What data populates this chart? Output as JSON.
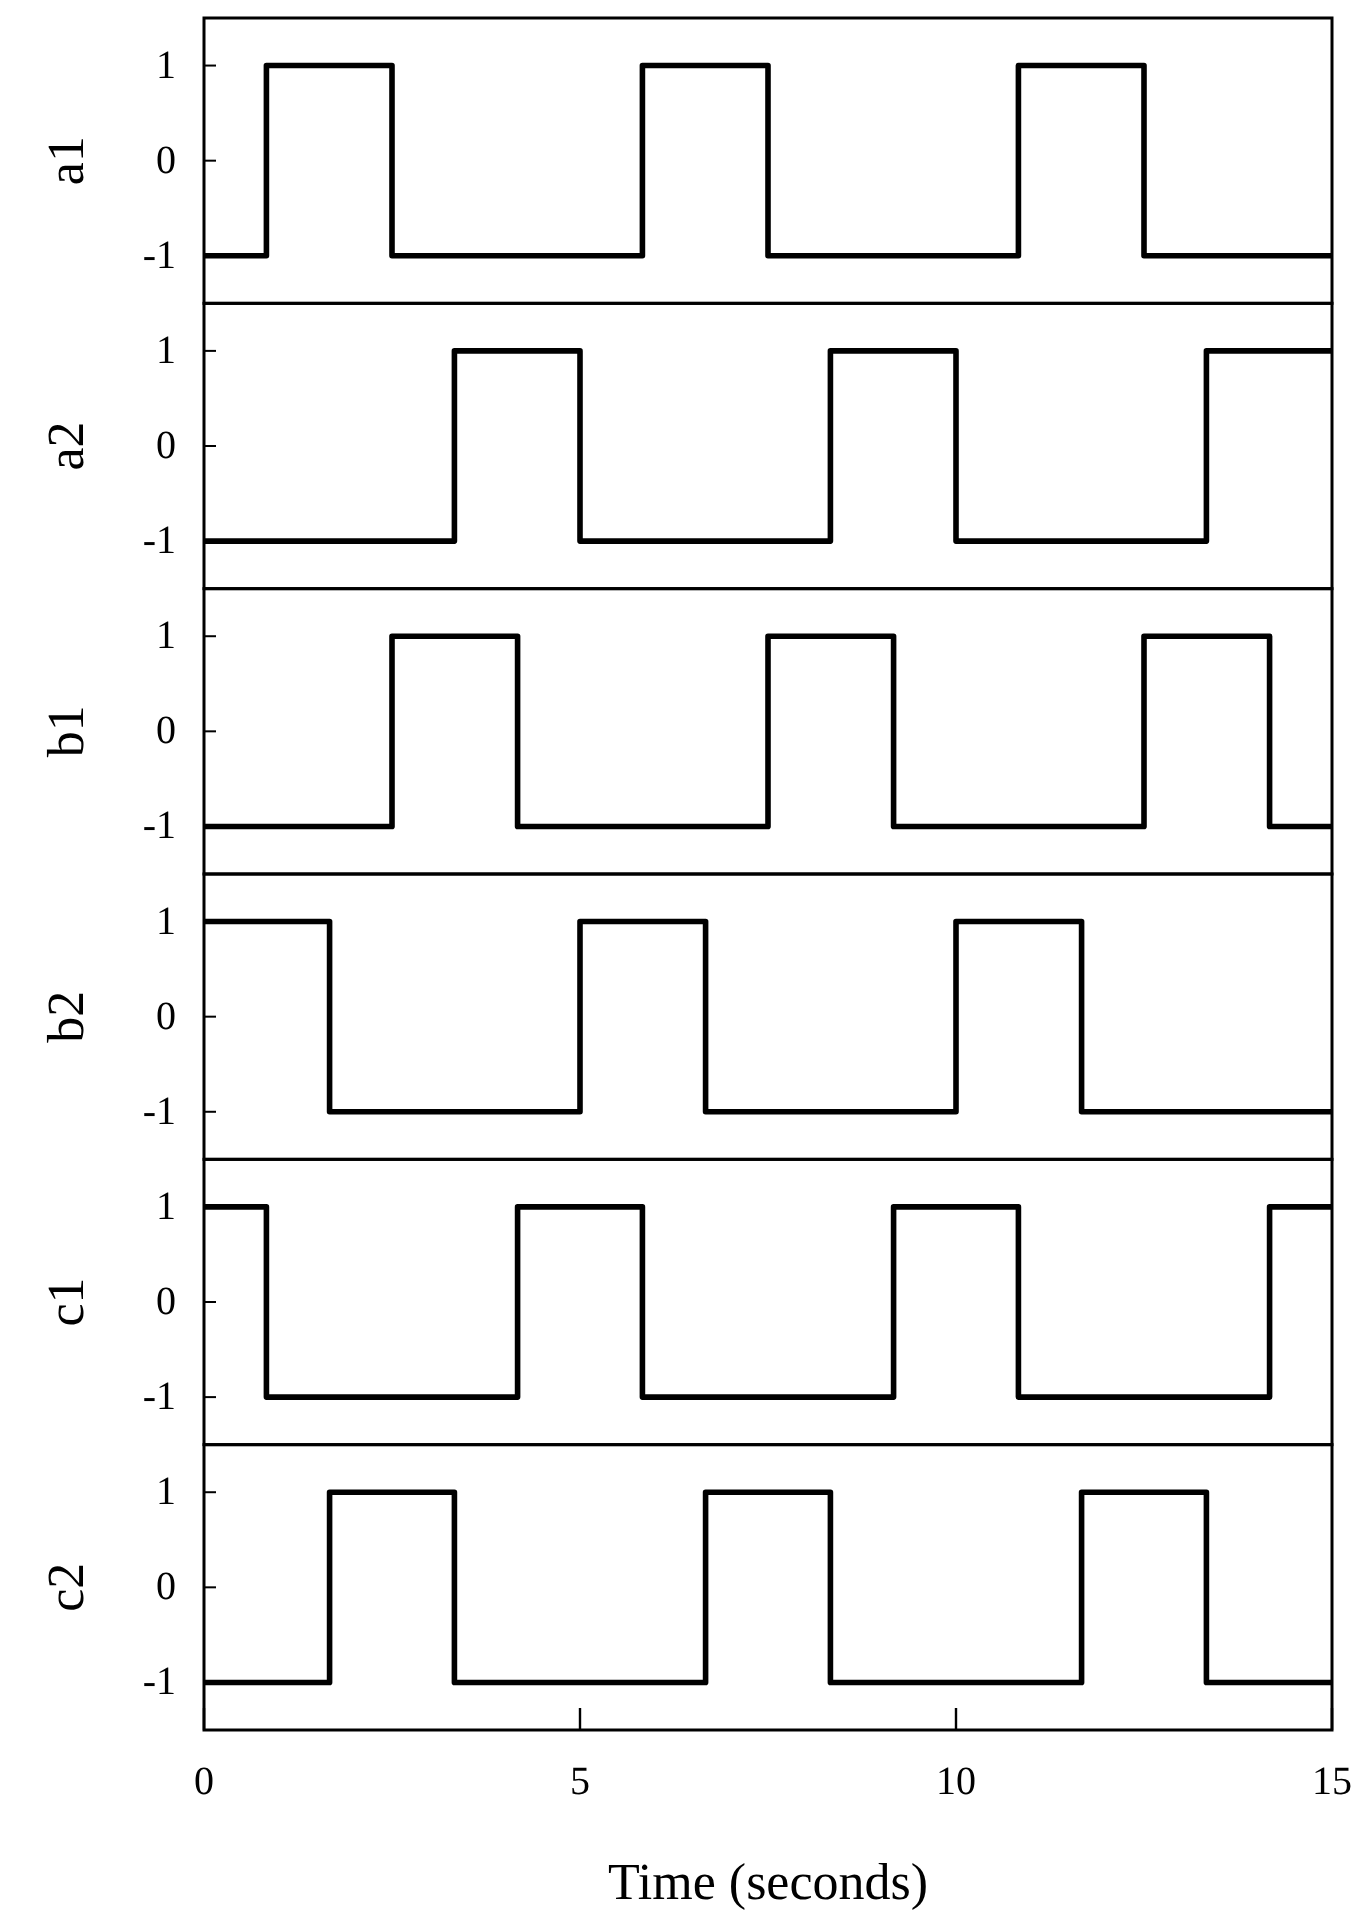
{
  "chart_data": [
    {
      "type": "step",
      "ylabel": "a1",
      "x": [
        0,
        0.83,
        2.5,
        5.83,
        7.5,
        10.83,
        12.5,
        15
      ],
      "values": [
        -1,
        1,
        -1,
        1,
        -1,
        1,
        -1,
        -1
      ],
      "color": "#000000",
      "xlim": [
        0,
        15
      ],
      "ylim": [
        -1.5,
        1.5
      ],
      "yticks": [
        -1,
        0,
        1
      ],
      "tick_labels": "y"
    },
    {
      "type": "step",
      "ylabel": "a2",
      "x": [
        0,
        3.33,
        5,
        8.33,
        10,
        13.33,
        15
      ],
      "values": [
        -1,
        1,
        -1,
        1,
        -1,
        1,
        1
      ],
      "color": "#000000",
      "xlim": [
        0,
        15
      ],
      "ylim": [
        -1.5,
        1.5
      ],
      "yticks": [
        -1,
        0,
        1
      ],
      "tick_labels": "y"
    },
    {
      "type": "step",
      "ylabel": "b1",
      "x": [
        0,
        2.5,
        4.17,
        7.5,
        9.17,
        12.5,
        14.17,
        15
      ],
      "values": [
        -1,
        1,
        -1,
        1,
        -1,
        1,
        -1,
        -1
      ],
      "color": "#000000",
      "xlim": [
        0,
        15
      ],
      "ylim": [
        -1.5,
        1.5
      ],
      "yticks": [
        -1,
        0,
        1
      ],
      "tick_labels": "y"
    },
    {
      "type": "step",
      "ylabel": "b2",
      "x": [
        0,
        1.67,
        5,
        6.67,
        10,
        11.67,
        15
      ],
      "values": [
        1,
        -1,
        1,
        -1,
        1,
        -1,
        -1
      ],
      "color": "#000000",
      "xlim": [
        0,
        15
      ],
      "ylim": [
        -1.5,
        1.5
      ],
      "yticks": [
        -1,
        0,
        1
      ],
      "tick_labels": "y"
    },
    {
      "type": "step",
      "ylabel": "c1",
      "x": [
        0,
        0.83,
        4.17,
        5.83,
        9.17,
        10.83,
        14.17,
        15
      ],
      "values": [
        1,
        -1,
        1,
        -1,
        1,
        -1,
        1,
        1
      ],
      "color": "#000000",
      "xlim": [
        0,
        15
      ],
      "ylim": [
        -1.5,
        1.5
      ],
      "yticks": [
        -1,
        0,
        1
      ],
      "tick_labels": "y"
    },
    {
      "type": "step",
      "ylabel": "c2",
      "xlabel": "Time (seconds)",
      "x": [
        0,
        1.67,
        3.33,
        6.67,
        8.33,
        11.67,
        13.33,
        15
      ],
      "values": [
        -1,
        1,
        -1,
        1,
        -1,
        1,
        -1,
        -1
      ],
      "color": "#000000",
      "xlim": [
        0,
        15
      ],
      "xticks": [
        0,
        5,
        10,
        15
      ],
      "ylim": [
        -1.5,
        1.5
      ],
      "yticks": [
        -1,
        0,
        1
      ]
    }
  ]
}
